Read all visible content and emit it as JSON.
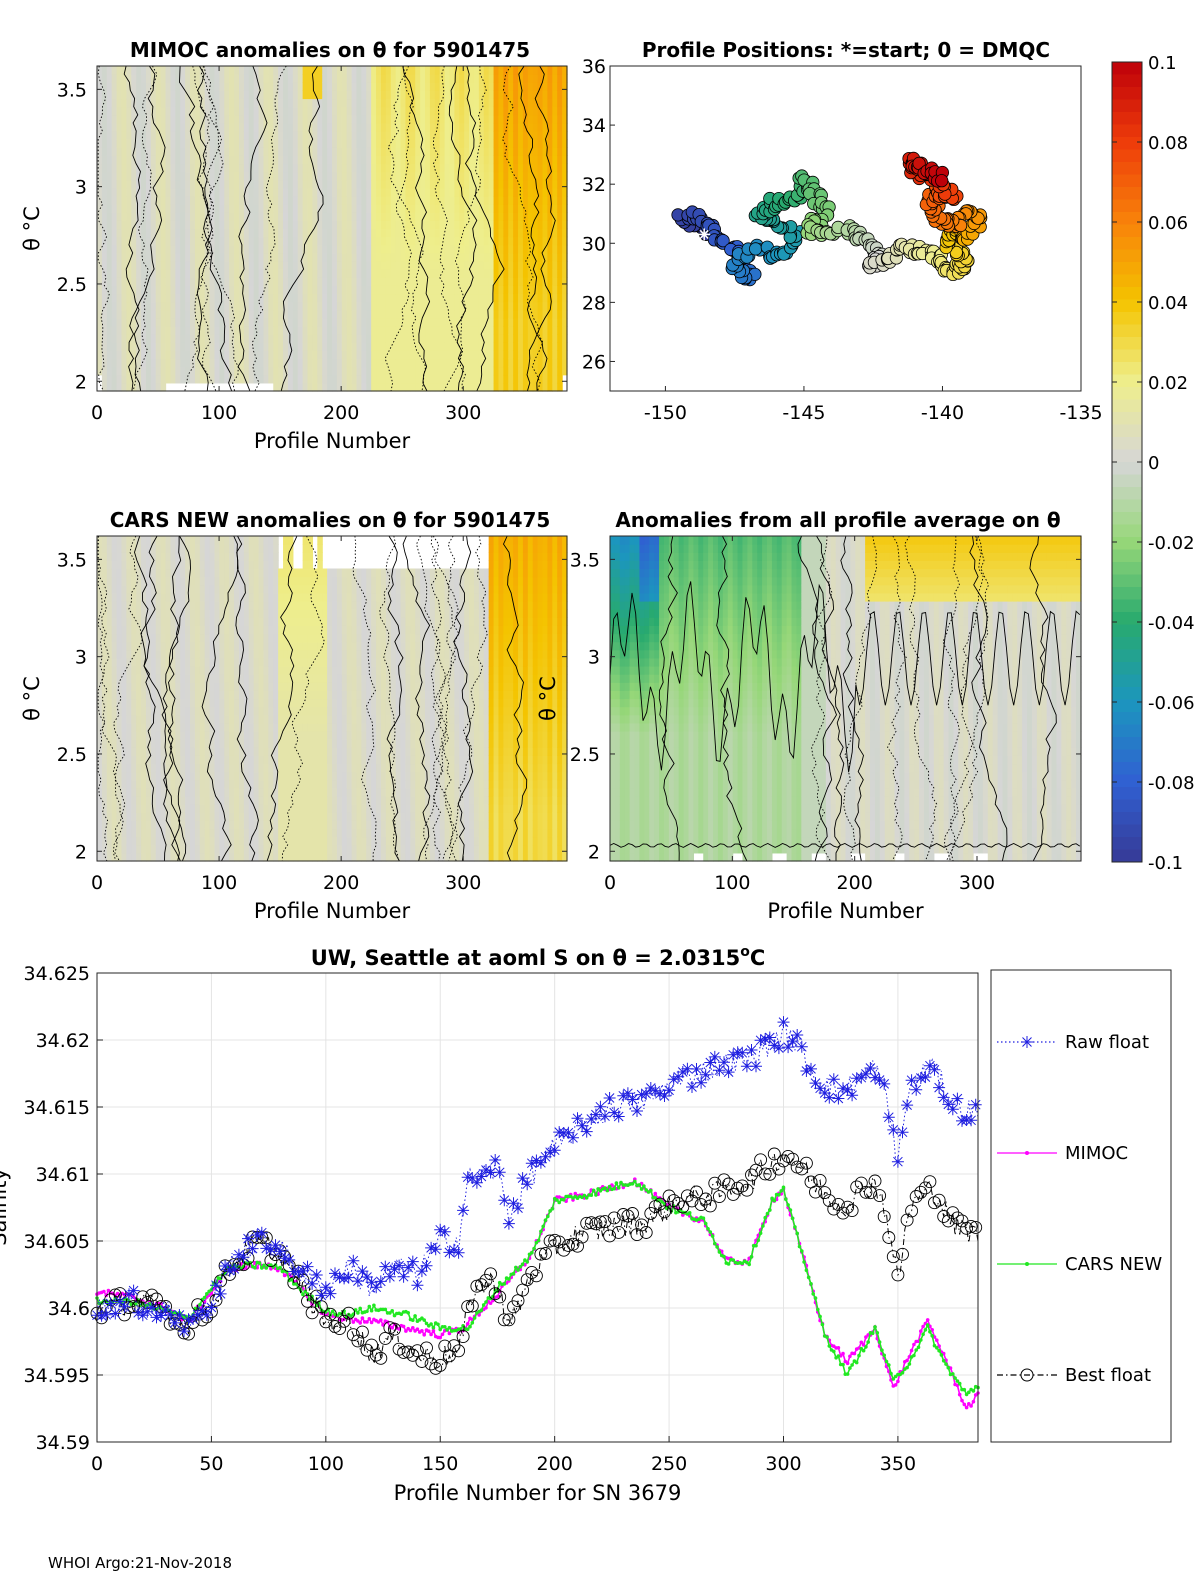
{
  "footer": "WHOI Argo:21-Nov-2018",
  "colors": {
    "raw_float": "#1f1fe0",
    "mimoc": "#ff00ff",
    "cars_new": "#22e822",
    "best_float": "#000000"
  },
  "chart_data": [
    {
      "id": "mimoc",
      "type": "heatmap",
      "title": "MIMOC anomalies on θ  for 5901475",
      "xlabel": "Profile Number",
      "ylabel": "θ °C",
      "xlim": [
        0,
        385
      ],
      "ylim": [
        1.95,
        3.62
      ],
      "xticks": [
        0,
        100,
        200,
        300
      ],
      "yticks": [
        2,
        2.5,
        3,
        3.5
      ],
      "ytick_labels": [
        "2",
        "2.5",
        "3",
        "3.5"
      ]
    },
    {
      "id": "positions",
      "type": "scatter",
      "title": "Profile Positions: *=start; 0 = DMQC",
      "xlim": [
        -152,
        -135
      ],
      "ylim": [
        25,
        36
      ],
      "xticks": [
        -150,
        -145,
        -140,
        -135
      ],
      "yticks": [
        26,
        28,
        30,
        32,
        34,
        36
      ],
      "start": {
        "lon": -148.6,
        "lat": 30.3
      },
      "waypoints": [
        [
          -148.6,
          30.3
        ],
        [
          -149.5,
          30.8
        ],
        [
          -148.8,
          31.0
        ],
        [
          -148.3,
          30.4
        ],
        [
          -147.6,
          29.9
        ],
        [
          -147.3,
          29.2
        ],
        [
          -146.9,
          28.8
        ],
        [
          -147.6,
          29.2
        ],
        [
          -146.8,
          29.8
        ],
        [
          -145.8,
          29.5
        ],
        [
          -145.2,
          30.2
        ],
        [
          -146.0,
          30.6
        ],
        [
          -146.7,
          31.0
        ],
        [
          -146.1,
          31.4
        ],
        [
          -145.1,
          31.5
        ],
        [
          -145.0,
          32.2
        ],
        [
          -144.6,
          31.6
        ],
        [
          -144.2,
          31.0
        ],
        [
          -144.9,
          30.5
        ],
        [
          -144.3,
          30.2
        ],
        [
          -143.4,
          30.5
        ],
        [
          -142.9,
          30.1
        ],
        [
          -142.2,
          29.6
        ],
        [
          -142.6,
          29.3
        ],
        [
          -141.9,
          29.6
        ],
        [
          -141.3,
          29.9
        ],
        [
          -140.8,
          29.7
        ],
        [
          -140.2,
          29.5
        ],
        [
          -139.8,
          29.0
        ],
        [
          -139.3,
          29.2
        ],
        [
          -139.2,
          29.6
        ],
        [
          -139.9,
          30.0
        ],
        [
          -139.6,
          30.5
        ],
        [
          -139.1,
          30.2
        ],
        [
          -138.7,
          30.7
        ],
        [
          -138.9,
          31.0
        ],
        [
          -139.5,
          30.6
        ],
        [
          -140.1,
          30.9
        ],
        [
          -140.5,
          31.4
        ],
        [
          -140.1,
          31.8
        ],
        [
          -139.6,
          31.5
        ],
        [
          -140.2,
          32.1
        ],
        [
          -141.0,
          32.4
        ],
        [
          -141.1,
          32.8
        ],
        [
          -140.6,
          32.5
        ],
        [
          -140.0,
          32.2
        ]
      ],
      "count": 385,
      "colormap_name": "parula-like",
      "colorbar": {
        "range": [
          -0.1,
          0.1
        ],
        "ticks": [
          0.1,
          0.08,
          0.06,
          0.04,
          0.02,
          0,
          -0.02,
          -0.04,
          -0.06,
          -0.08,
          -0.1
        ],
        "tick_labels": [
          "0.1",
          "0.08",
          "0.06",
          "0.04",
          "0.02",
          "0",
          "-0.02",
          "-0.04",
          "-0.06",
          "-0.08",
          "-0.1"
        ]
      }
    },
    {
      "id": "cars",
      "type": "heatmap",
      "title": "CARS NEW anomalies on θ for 5901475",
      "xlabel": "Profile Number",
      "ylabel": "θ °C",
      "xlim": [
        0,
        385
      ],
      "ylim": [
        1.95,
        3.62
      ],
      "xticks": [
        0,
        100,
        200,
        300
      ],
      "yticks": [
        2,
        2.5,
        3,
        3.5
      ],
      "ytick_labels": [
        "2",
        "2.5",
        "3",
        "3.5"
      ]
    },
    {
      "id": "allavg",
      "type": "heatmap",
      "title": "Anomalies from all profile average on θ",
      "xlabel": "Profile Number",
      "ylabel": "θ °C",
      "xlim": [
        0,
        385
      ],
      "ylim": [
        1.95,
        3.62
      ],
      "xticks": [
        0,
        100,
        200,
        300
      ],
      "yticks": [
        2,
        2.5,
        3,
        3.5
      ],
      "ytick_labels": [
        "2",
        "2.5",
        "3",
        "3.5"
      ]
    },
    {
      "id": "salinity",
      "type": "line",
      "title": "UW, Seattle at aoml S on θ = 2.0315",
      "title_sup": "o",
      "title_unit": "C",
      "xlabel": "Profile Number for SN 3679",
      "ylabel": "Salinity",
      "xlim": [
        0,
        385
      ],
      "ylim": [
        34.59,
        34.625
      ],
      "xticks": [
        0,
        50,
        100,
        150,
        200,
        250,
        300,
        350
      ],
      "yticks": [
        34.59,
        34.595,
        34.6,
        34.605,
        34.61,
        34.615,
        34.62,
        34.625
      ],
      "ytick_labels": [
        "34.59",
        "34.595",
        "34.6",
        "34.605",
        "34.61",
        "34.615",
        "34.62",
        "34.625"
      ],
      "legend": [
        "Raw float",
        "MIMOC",
        "CARS NEW",
        "Best float"
      ],
      "legend_position": "right",
      "series": [
        {
          "name": "Raw float",
          "knots": [
            [
              0,
              34.5999
            ],
            [
              15,
              34.6005
            ],
            [
              30,
              34.5999
            ],
            [
              40,
              34.5988
            ],
            [
              50,
              34.6003
            ],
            [
              58,
              34.6035
            ],
            [
              70,
              34.605
            ],
            [
              80,
              34.6045
            ],
            [
              90,
              34.6025
            ],
            [
              100,
              34.6015
            ],
            [
              110,
              34.603
            ],
            [
              120,
              34.6015
            ],
            [
              130,
              34.603
            ],
            [
              140,
              34.6025
            ],
            [
              150,
              34.605
            ],
            [
              158,
              34.605
            ],
            [
              162,
              34.6095
            ],
            [
              175,
              34.6105
            ],
            [
              180,
              34.607
            ],
            [
              190,
              34.61
            ],
            [
              200,
              34.612
            ],
            [
              210,
              34.6135
            ],
            [
              225,
              34.615
            ],
            [
              240,
              34.6155
            ],
            [
              255,
              34.617
            ],
            [
              270,
              34.618
            ],
            [
              285,
              34.6185
            ],
            [
              300,
              34.6205
            ],
            [
              305,
              34.62
            ],
            [
              315,
              34.617
            ],
            [
              325,
              34.616
            ],
            [
              340,
              34.618
            ],
            [
              345,
              34.6155
            ],
            [
              350,
              34.611
            ],
            [
              355,
              34.6165
            ],
            [
              365,
              34.618
            ],
            [
              375,
              34.615
            ],
            [
              385,
              34.6145
            ]
          ]
        },
        {
          "name": "MIMOC",
          "knots": [
            [
              0,
              34.6012
            ],
            [
              15,
              34.6008
            ],
            [
              30,
              34.6
            ],
            [
              40,
              34.599
            ],
            [
              50,
              34.6012
            ],
            [
              58,
              34.603
            ],
            [
              70,
              34.6032
            ],
            [
              80,
              34.603
            ],
            [
              90,
              34.6012
            ],
            [
              100,
              34.5995
            ],
            [
              110,
              34.5992
            ],
            [
              120,
              34.599
            ],
            [
              135,
              34.5985
            ],
            [
              150,
              34.598
            ],
            [
              160,
              34.5985
            ],
            [
              175,
              34.601
            ],
            [
              190,
              34.604
            ],
            [
              200,
              34.608
            ],
            [
              215,
              34.6085
            ],
            [
              235,
              34.6095
            ],
            [
              250,
              34.6075
            ],
            [
              265,
              34.6065
            ],
            [
              275,
              34.6035
            ],
            [
              285,
              34.6035
            ],
            [
              295,
              34.608
            ],
            [
              300,
              34.6088
            ],
            [
              310,
              34.603
            ],
            [
              318,
              34.598
            ],
            [
              328,
              34.596
            ],
            [
              340,
              34.5985
            ],
            [
              348,
              34.594
            ],
            [
              355,
              34.5965
            ],
            [
              363,
              34.599
            ],
            [
              370,
              34.5965
            ],
            [
              380,
              34.5925
            ],
            [
              385,
              34.5935
            ]
          ]
        },
        {
          "name": "CARS NEW",
          "knots": [
            [
              0,
              34.6005
            ],
            [
              15,
              34.6005
            ],
            [
              30,
              34.5998
            ],
            [
              40,
              34.5992
            ],
            [
              50,
              34.6015
            ],
            [
              58,
              34.603
            ],
            [
              70,
              34.6032
            ],
            [
              80,
              34.603
            ],
            [
              90,
              34.6012
            ],
            [
              100,
              34.5998
            ],
            [
              110,
              34.5995
            ],
            [
              120,
              34.6
            ],
            [
              135,
              34.5995
            ],
            [
              150,
              34.5985
            ],
            [
              162,
              34.5985
            ],
            [
              175,
              34.6015
            ],
            [
              190,
              34.604
            ],
            [
              200,
              34.608
            ],
            [
              215,
              34.6085
            ],
            [
              235,
              34.6095
            ],
            [
              250,
              34.6075
            ],
            [
              265,
              34.6065
            ],
            [
              275,
              34.6035
            ],
            [
              285,
              34.6035
            ],
            [
              295,
              34.608
            ],
            [
              300,
              34.6088
            ],
            [
              310,
              34.603
            ],
            [
              318,
              34.598
            ],
            [
              328,
              34.595
            ],
            [
              340,
              34.5985
            ],
            [
              348,
              34.5945
            ],
            [
              355,
              34.596
            ],
            [
              363,
              34.5985
            ],
            [
              370,
              34.596
            ],
            [
              380,
              34.5935
            ],
            [
              385,
              34.5942
            ]
          ]
        },
        {
          "name": "Best float",
          "knots": [
            [
              0,
              34.5999
            ],
            [
              15,
              34.6005
            ],
            [
              30,
              34.5999
            ],
            [
              40,
              34.5988
            ],
            [
              50,
              34.6003
            ],
            [
              58,
              34.603
            ],
            [
              70,
              34.605
            ],
            [
              80,
              34.604
            ],
            [
              90,
              34.6015
            ],
            [
              100,
              34.599
            ],
            [
              110,
              34.599
            ],
            [
              120,
              34.5965
            ],
            [
              130,
              34.598
            ],
            [
              140,
              34.5965
            ],
            [
              150,
              34.5962
            ],
            [
              158,
              34.5968
            ],
            [
              165,
              34.6015
            ],
            [
              175,
              34.602
            ],
            [
              180,
              34.5985
            ],
            [
              190,
              34.6025
            ],
            [
              200,
              34.6045
            ],
            [
              210,
              34.6055
            ],
            [
              225,
              34.606
            ],
            [
              240,
              34.6065
            ],
            [
              255,
              34.608
            ],
            [
              270,
              34.6085
            ],
            [
              285,
              34.6095
            ],
            [
              300,
              34.6115
            ],
            [
              305,
              34.611
            ],
            [
              315,
              34.609
            ],
            [
              325,
              34.6075
            ],
            [
              340,
              34.6095
            ],
            [
              345,
              34.607
            ],
            [
              350,
              34.602
            ],
            [
              355,
              34.6075
            ],
            [
              365,
              34.609
            ],
            [
              375,
              34.606
            ],
            [
              385,
              34.6055
            ]
          ]
        }
      ]
    }
  ]
}
